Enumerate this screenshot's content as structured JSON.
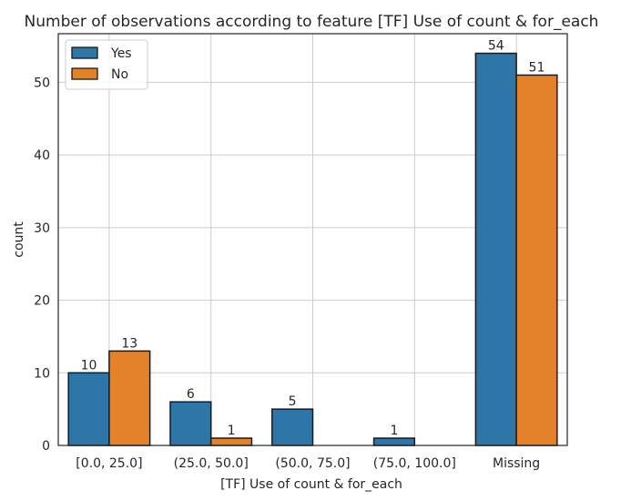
{
  "chart_data": {
    "type": "bar",
    "title": "Number of observations according to feature [TF] Use of count & for_each",
    "xlabel": "[TF] Use of count & for_each",
    "ylabel": "count",
    "categories": [
      "[0.0, 25.0]",
      "(25.0, 50.0]",
      "(50.0, 75.0]",
      "(75.0, 100.0]",
      "Missing"
    ],
    "series": [
      {
        "name": "Yes",
        "color": "#2e75a8",
        "values": [
          10,
          6,
          5,
          1,
          54
        ]
      },
      {
        "name": "No",
        "color": "#e4822a",
        "values": [
          13,
          1,
          null,
          null,
          51
        ]
      }
    ],
    "ylim": [
      0,
      56.7
    ],
    "yticks": [
      0,
      10,
      20,
      30,
      40,
      50
    ],
    "grid": true,
    "legend_position": "top-left"
  }
}
